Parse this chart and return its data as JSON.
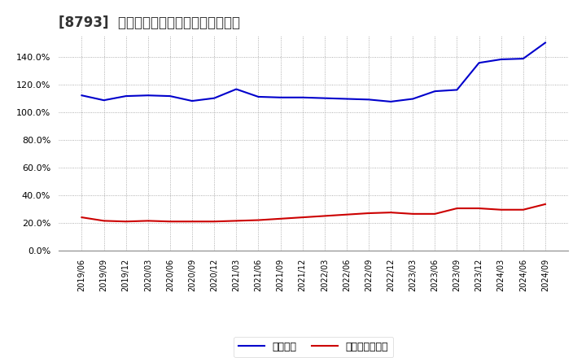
{
  "title": "[8793]  固定比率、固定長期適合率の推移",
  "x_labels": [
    "2019/06",
    "2019/09",
    "2019/12",
    "2020/03",
    "2020/06",
    "2020/09",
    "2020/12",
    "2021/03",
    "2021/06",
    "2021/09",
    "2021/12",
    "2022/03",
    "2022/06",
    "2022/09",
    "2022/12",
    "2023/03",
    "2023/06",
    "2023/09",
    "2023/12",
    "2024/03",
    "2024/06",
    "2024/09"
  ],
  "fixed_ratio": [
    112.0,
    108.5,
    111.5,
    112.0,
    111.5,
    108.0,
    110.0,
    116.5,
    111.0,
    110.5,
    110.5,
    110.0,
    109.5,
    109.0,
    107.5,
    109.5,
    115.0,
    116.0,
    135.5,
    138.0,
    138.5,
    150.0
  ],
  "fixed_long_ratio": [
    24.0,
    21.5,
    21.0,
    21.5,
    21.0,
    21.0,
    21.0,
    21.5,
    22.0,
    23.0,
    24.0,
    25.0,
    26.0,
    27.0,
    27.5,
    26.5,
    26.5,
    30.5,
    30.5,
    29.5,
    29.5,
    33.5
  ],
  "line_color_blue": "#0000cc",
  "line_color_red": "#cc0000",
  "bg_color": "#ffffff",
  "plot_bg_color": "#ffffff",
  "grid_color": "#999999",
  "title_color": "#333333",
  "legend_blue": "固定比率",
  "legend_red": "固定長期適合率",
  "ylim": [
    0,
    155
  ],
  "yticks": [
    0,
    20,
    40,
    60,
    80,
    100,
    120,
    140
  ],
  "title_fontsize": 12
}
